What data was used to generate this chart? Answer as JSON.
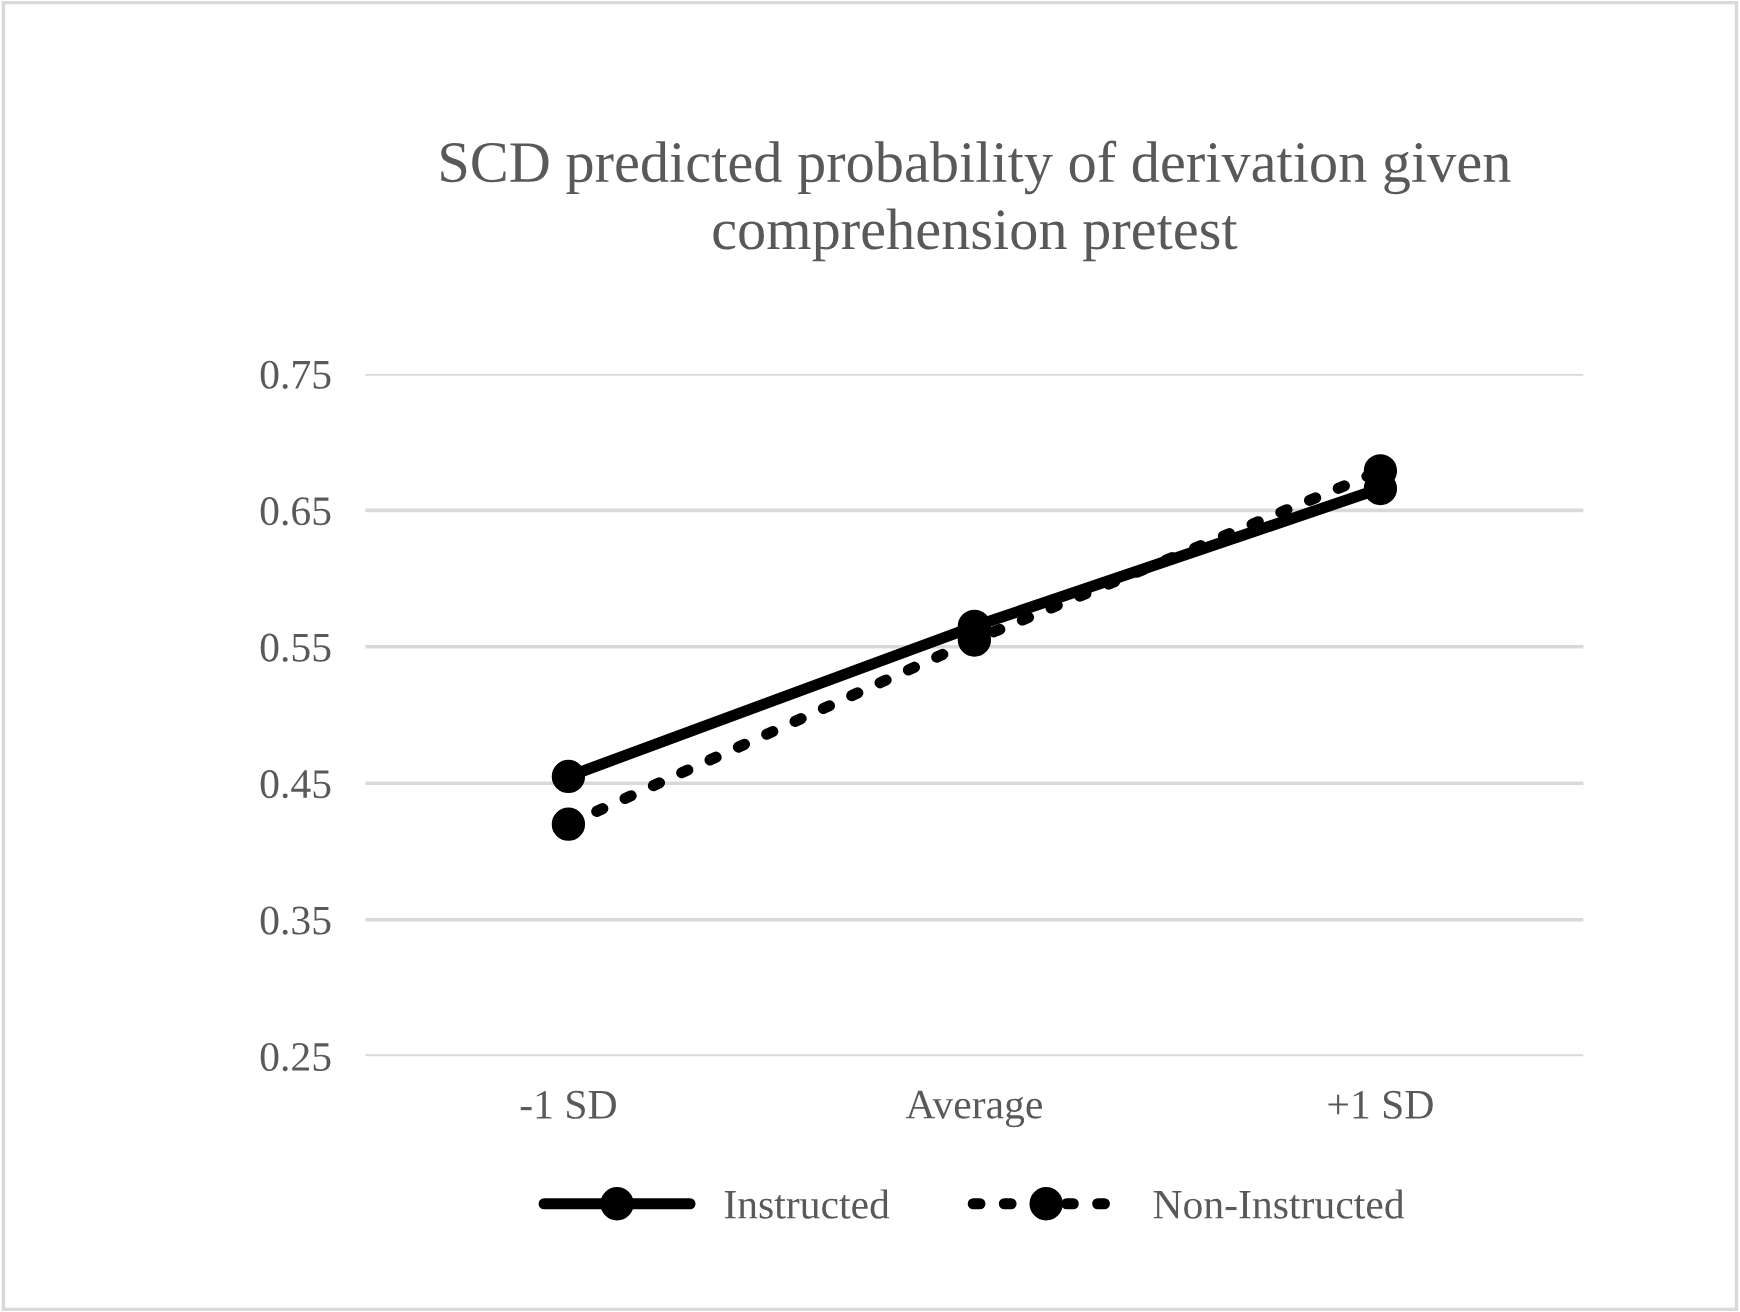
{
  "chart_data": {
    "type": "line",
    "title": "SCD predicted probability of derivation given\ncomprehension pretest",
    "categories": [
      "-1 SD",
      "Average",
      "+1 SD"
    ],
    "series": [
      {
        "name": "Instructed",
        "color": "#000000",
        "values": [
          0.455,
          0.565,
          0.666
        ],
        "line_style": "solid"
      },
      {
        "name": "Non-Instructed",
        "color": "#000000",
        "values": [
          0.42,
          0.555,
          0.679
        ],
        "line_style": "dotted"
      }
    ],
    "ylim": [
      0.25,
      0.75
    ],
    "yticks": [
      0.25,
      0.35,
      0.45,
      0.55,
      0.65,
      0.75
    ],
    "grid": "y",
    "legend": "bottom",
    "marker": "circle"
  }
}
